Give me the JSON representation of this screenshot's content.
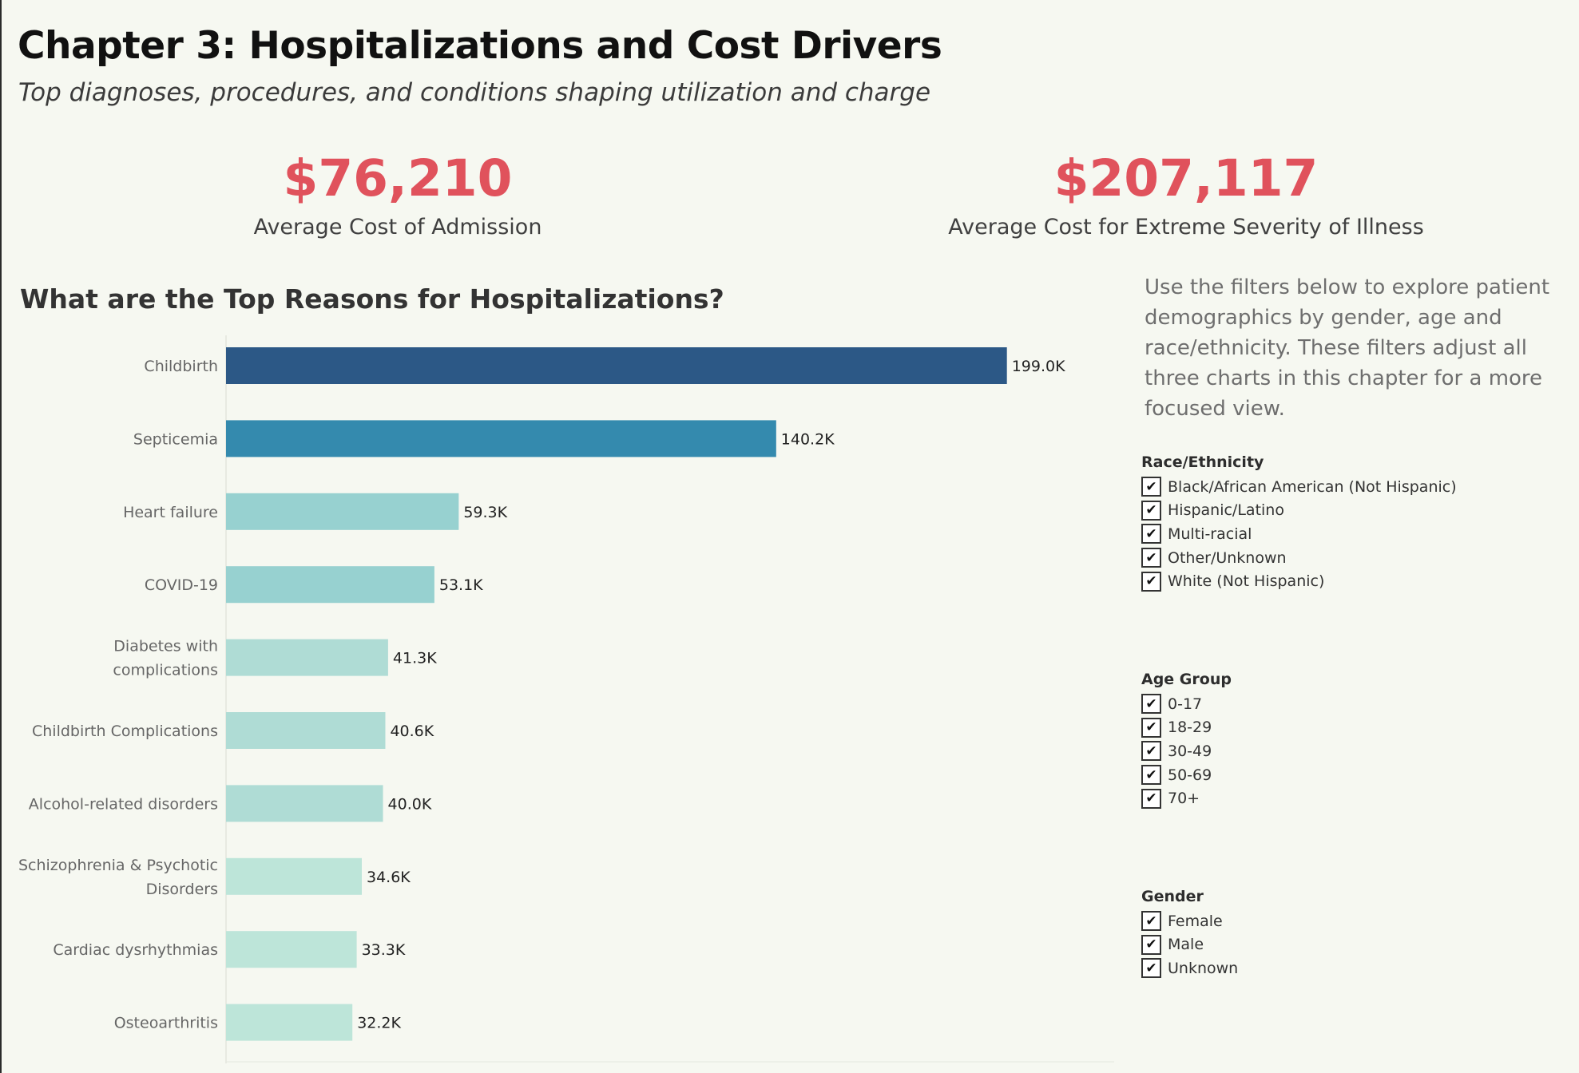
{
  "header": {
    "title": "Chapter 3: Hospitalizations and Cost Drivers",
    "subtitle": "Top diagnoses, procedures, and conditions shaping utilization and charge"
  },
  "kpis": {
    "admission": {
      "value": "$76,210",
      "label": "Average Cost of Admission"
    },
    "extreme": {
      "value": "$207,117",
      "label": "Average Cost for Extreme Severity of Illness"
    }
  },
  "colors": {
    "kpi": "#e0525c",
    "bar_dark": "#2c5886",
    "bar_mid": "#348aae",
    "bar_light": "#97d1d0",
    "bar_lighter": "#afdcd5",
    "bar_lightest": "#bde5d9"
  },
  "chart_data": {
    "type": "bar",
    "orientation": "horizontal",
    "title": "What are the Top Reasons for Hospitalizations?",
    "categories": [
      "Childbirth",
      "Septicemia",
      "Heart failure",
      "COVID-19",
      "Diabetes with complications",
      "Childbirth Complications",
      "Alcohol-related disorders",
      "Schizophrenia & Psychotic Disorders",
      "Cardiac dysrhythmias",
      "Osteoarthritis"
    ],
    "category_lines": [
      [
        "Childbirth"
      ],
      [
        "Septicemia"
      ],
      [
        "Heart failure"
      ],
      [
        "COVID-19"
      ],
      [
        "Diabetes with",
        "complications"
      ],
      [
        "Childbirth Complications"
      ],
      [
        "Alcohol-related disorders"
      ],
      [
        "Schizophrenia & Psychotic",
        "Disorders"
      ],
      [
        "Cardiac dysrhythmias"
      ],
      [
        "Osteoarthritis"
      ]
    ],
    "values": [
      199000,
      140200,
      59300,
      53100,
      41300,
      40600,
      40000,
      34600,
      33300,
      32200
    ],
    "data_labels": [
      "199.0K",
      "140.2K",
      "59.3K",
      "53.1K",
      "41.3K",
      "40.6K",
      "40.0K",
      "34.6K",
      "33.3K",
      "32.2K"
    ],
    "bar_colors": [
      "#2c5886",
      "#348aae",
      "#97d1d0",
      "#97d1d0",
      "#afdcd5",
      "#afdcd5",
      "#afdcd5",
      "#bde5d9",
      "#bde5d9",
      "#bde5d9"
    ],
    "xlim": [
      0,
      230000
    ],
    "grid": false
  },
  "filters": {
    "note": "Use the filters below to explore patient demographics by gender, age and race/ethnicity. These filters adjust all three charts in this chapter for a more focused view.",
    "race": {
      "title": "Race/Ethnicity",
      "options": [
        {
          "label": "Black/African American (Not Hispanic)",
          "checked": true
        },
        {
          "label": "Hispanic/Latino",
          "checked": true
        },
        {
          "label": "Multi-racial",
          "checked": true
        },
        {
          "label": "Other/Unknown",
          "checked": true
        },
        {
          "label": "White (Not Hispanic)",
          "checked": true
        }
      ]
    },
    "age": {
      "title": "Age Group",
      "options": [
        {
          "label": "0-17",
          "checked": true
        },
        {
          "label": "18-29",
          "checked": true
        },
        {
          "label": "30-49",
          "checked": true
        },
        {
          "label": "50-69",
          "checked": true
        },
        {
          "label": "70+",
          "checked": true
        }
      ]
    },
    "gender": {
      "title": "Gender",
      "options": [
        {
          "label": "Female",
          "checked": true
        },
        {
          "label": "Male",
          "checked": true
        },
        {
          "label": "Unknown",
          "checked": true
        }
      ]
    },
    "check_glyph": "✔"
  }
}
